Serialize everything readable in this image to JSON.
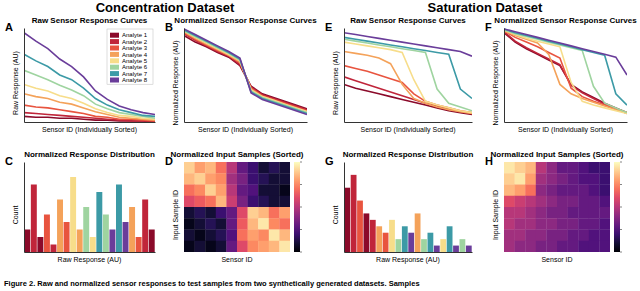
{
  "figure": {
    "headings": [
      "Concentration Dataset",
      "Saturation Dataset"
    ],
    "caption": "Figure 2. Raw and normalized sensor responses to test samples from two synthetically generated datasets. Samples"
  },
  "chart_data": [
    {
      "type": "line",
      "title": "Raw Sensor Response Curves",
      "annotations": [
        "A"
      ],
      "x_label": "Sensor ID (Individually Sorted)",
      "y_label": "Raw Response (AU)",
      "x": [
        0,
        1,
        2,
        3,
        4,
        5,
        6,
        7,
        8,
        9,
        10,
        11
      ],
      "xlim": [
        0,
        11
      ],
      "ylim": [
        0,
        100
      ],
      "tick_labels": false,
      "legend": "upper right",
      "series": [
        {
          "name": "Analyte 1",
          "color": "#8b0a2a",
          "values": [
            6,
            5,
            5,
            4,
            4,
            3,
            2,
            2,
            1,
            1,
            1,
            0
          ]
        },
        {
          "name": "Analyte 2",
          "color": "#c0253a",
          "values": [
            10,
            9,
            8,
            7,
            6,
            5,
            4,
            3,
            2,
            1,
            1,
            1
          ]
        },
        {
          "name": "Analyte 3",
          "color": "#e8543f",
          "values": [
            18,
            16,
            15,
            13,
            11,
            9,
            6,
            5,
            3,
            3,
            2,
            1
          ]
        },
        {
          "name": "Analyte 4",
          "color": "#f4a25a",
          "values": [
            30,
            27,
            25,
            21,
            19,
            15,
            11,
            8,
            5,
            4,
            3,
            2
          ]
        },
        {
          "name": "Analyte 5",
          "color": "#f7dd8a",
          "values": [
            40,
            36,
            33,
            28,
            25,
            20,
            14,
            10,
            7,
            6,
            4,
            3
          ]
        },
        {
          "name": "Analyte 6",
          "color": "#9fd4a0",
          "values": [
            55,
            50,
            45,
            39,
            34,
            28,
            19,
            14,
            10,
            8,
            6,
            4
          ]
        },
        {
          "name": "Analyte 7",
          "color": "#3c9aa6",
          "values": [
            72,
            65,
            59,
            50,
            45,
            36,
            25,
            18,
            13,
            10,
            7,
            6
          ]
        },
        {
          "name": "Analyte 8",
          "color": "#6a3d9a",
          "values": [
            95,
            86,
            78,
            67,
            59,
            48,
            33,
            24,
            17,
            13,
            10,
            8
          ]
        }
      ]
    },
    {
      "type": "line",
      "title": "Normalized Sensor Response Curves",
      "annotations": [
        "B"
      ],
      "x_label": "Sensor ID (Individually Sorted)",
      "y_label": "Normalized Response (AU)",
      "x": [
        0,
        1,
        2,
        3,
        4,
        5,
        6,
        7,
        8,
        9,
        10,
        11
      ],
      "xlim": [
        0,
        11
      ],
      "ylim": [
        0,
        1
      ],
      "tick_labels": false,
      "series": [
        {
          "color": "#8b0a2a",
          "values": [
            0.92,
            0.85,
            0.8,
            0.74,
            0.69,
            0.6,
            0.38,
            0.3,
            0.26,
            0.22,
            0.18,
            0.14
          ]
        },
        {
          "color": "#c0253a",
          "values": [
            0.94,
            0.87,
            0.81,
            0.75,
            0.7,
            0.61,
            0.37,
            0.29,
            0.25,
            0.21,
            0.17,
            0.13
          ]
        },
        {
          "color": "#e8543f",
          "values": [
            0.95,
            0.88,
            0.82,
            0.76,
            0.71,
            0.63,
            0.36,
            0.28,
            0.24,
            0.2,
            0.16,
            0.12
          ]
        },
        {
          "color": "#f4a25a",
          "values": [
            0.96,
            0.89,
            0.83,
            0.77,
            0.71,
            0.64,
            0.35,
            0.27,
            0.23,
            0.19,
            0.15,
            0.11
          ]
        },
        {
          "color": "#f7dd8a",
          "values": [
            0.97,
            0.9,
            0.84,
            0.78,
            0.72,
            0.65,
            0.34,
            0.27,
            0.23,
            0.19,
            0.15,
            0.11
          ]
        },
        {
          "color": "#9fd4a0",
          "values": [
            0.97,
            0.91,
            0.85,
            0.79,
            0.73,
            0.66,
            0.33,
            0.26,
            0.22,
            0.18,
            0.14,
            0.1
          ]
        },
        {
          "color": "#3c9aa6",
          "values": [
            0.98,
            0.92,
            0.86,
            0.8,
            0.74,
            0.67,
            0.32,
            0.25,
            0.21,
            0.17,
            0.13,
            0.09
          ]
        },
        {
          "color": "#6a3d9a",
          "values": [
            0.99,
            0.93,
            0.87,
            0.81,
            0.75,
            0.68,
            0.31,
            0.24,
            0.2,
            0.16,
            0.12,
            0.08
          ]
        }
      ]
    },
    {
      "type": "histogram",
      "title": "Normalized Response Distribution",
      "annotations": [
        "C"
      ],
      "x_label": "Raw Response (AU)",
      "y_label": "Count",
      "bins": [
        0,
        0.05,
        0.1,
        0.15,
        0.2,
        0.25,
        0.3,
        0.35,
        0.4,
        0.45,
        0.5,
        0.55,
        0.6,
        0.65,
        0.7,
        0.75,
        0.8,
        0.85,
        0.9,
        0.95,
        1
      ],
      "values": [
        3,
        9,
        2,
        5,
        1,
        7,
        4,
        10,
        3,
        6,
        2,
        8,
        5,
        3,
        9,
        4,
        6,
        2,
        7,
        3
      ],
      "colors": [
        "#8b0a2a",
        "#c0253a",
        "#8b0a2a",
        "#e8543f",
        "#c0253a",
        "#f4a25a",
        "#e8543f",
        "#f7dd8a",
        "#f4a25a",
        "#9fd4a0",
        "#f7dd8a",
        "#3c9aa6",
        "#9fd4a0",
        "#6a3d9a",
        "#3c9aa6",
        "#6a3d9a",
        "#f4a25a",
        "#e8543f",
        "#c0253a",
        "#8b0a2a"
      ],
      "xlim": [
        0,
        1
      ],
      "ylim": [
        0,
        12
      ],
      "tick_labels": false
    },
    {
      "type": "heatmap",
      "title": "Normalized Input Samples (Sorted)",
      "annotations": [
        "D"
      ],
      "x_label": "Sensor ID",
      "y_label": "Input Sample ID",
      "color": "magma",
      "tick_labels": false,
      "colorbar": {
        "range": [
          0,
          1
        ],
        "ticks": [
          0,
          0.25,
          0.5,
          0.75,
          1
        ]
      },
      "cells": [
        [
          0.9,
          0.8,
          0.85,
          0.7,
          0.5,
          0.3,
          0.2,
          0.1,
          0.15,
          0.1
        ],
        [
          0.85,
          0.9,
          0.8,
          0.75,
          0.45,
          0.35,
          0.2,
          0.15,
          0.1,
          0.1
        ],
        [
          0.7,
          0.75,
          0.9,
          0.8,
          0.5,
          0.3,
          0.25,
          0.1,
          0.1,
          0.05
        ],
        [
          0.6,
          0.65,
          0.7,
          0.85,
          0.55,
          0.35,
          0.2,
          0.15,
          0.1,
          0.1
        ],
        [
          0.1,
          0.15,
          0.1,
          0.2,
          0.3,
          0.6,
          0.9,
          0.85,
          0.7,
          0.8
        ],
        [
          0.05,
          0.1,
          0.15,
          0.1,
          0.3,
          0.65,
          0.85,
          0.95,
          0.75,
          0.7
        ],
        [
          0.1,
          0.05,
          0.1,
          0.15,
          0.25,
          0.7,
          0.8,
          0.75,
          0.95,
          0.85
        ],
        [
          0.05,
          0.1,
          0.05,
          0.1,
          0.3,
          0.6,
          0.75,
          0.8,
          0.85,
          0.95
        ]
      ]
    },
    {
      "type": "line",
      "title": "Raw Sensor Response Curves",
      "annotations": [
        "E"
      ],
      "x_label": "Sensor ID (Individually Sorted)",
      "y_label": "Raw Response (AU)",
      "x": [
        0,
        1,
        2,
        3,
        4,
        5,
        6,
        7,
        8,
        9,
        10,
        11
      ],
      "xlim": [
        0,
        11
      ],
      "ylim": [
        0,
        100
      ],
      "tick_labels": false,
      "series": [
        {
          "color": "#8b0a2a",
          "values": [
            40,
            36,
            33,
            30,
            27,
            24,
            21,
            18,
            15,
            12,
            10,
            8
          ]
        },
        {
          "color": "#c0253a",
          "values": [
            48,
            44,
            40,
            36,
            32,
            28,
            24,
            20,
            17,
            14,
            11,
            9
          ]
        },
        {
          "color": "#e8543f",
          "values": [
            60,
            57,
            54,
            50,
            46,
            42,
            30,
            22,
            18,
            15,
            12,
            10
          ]
        },
        {
          "color": "#f4a25a",
          "values": [
            75,
            73,
            71,
            68,
            62,
            40,
            25,
            20,
            16,
            13,
            11,
            9
          ]
        },
        {
          "color": "#f7dd8a",
          "values": [
            85,
            83,
            81,
            79,
            77,
            74,
            45,
            22,
            18,
            15,
            12,
            10
          ]
        },
        {
          "color": "#9fd4a0",
          "values": [
            88,
            86,
            84,
            82,
            80,
            78,
            76,
            74,
            35,
            20,
            16,
            12
          ]
        },
        {
          "color": "#3c9aa6",
          "values": [
            90,
            88,
            86,
            84,
            82,
            80,
            78,
            76,
            74,
            72,
            35,
            25
          ]
        },
        {
          "color": "#6a3d9a",
          "values": [
            95,
            93,
            91,
            89,
            87,
            85,
            83,
            81,
            79,
            77,
            75,
            70
          ]
        }
      ]
    },
    {
      "type": "line",
      "title": "Normalized Sensor Response Curves",
      "annotations": [
        "F"
      ],
      "x_label": "Sensor ID (Individually Sorted)",
      "y_label": "Normalized Response (AU)",
      "x": [
        0,
        1,
        2,
        3,
        4,
        5,
        6,
        7,
        8,
        9,
        10,
        11
      ],
      "xlim": [
        0,
        11
      ],
      "ylim": [
        0,
        1
      ],
      "tick_labels": false,
      "series": [
        {
          "color": "#8b0a2a",
          "values": [
            0.95,
            0.85,
            0.78,
            0.72,
            0.66,
            0.6,
            0.4,
            0.32,
            0.26,
            0.2,
            0.15,
            0.1
          ]
        },
        {
          "color": "#c0253a",
          "values": [
            0.96,
            0.86,
            0.79,
            0.73,
            0.67,
            0.61,
            0.39,
            0.31,
            0.25,
            0.19,
            0.14,
            0.09
          ]
        },
        {
          "color": "#e8543f",
          "values": [
            0.97,
            0.9,
            0.85,
            0.8,
            0.74,
            0.68,
            0.36,
            0.27,
            0.22,
            0.18,
            0.14,
            0.1
          ]
        },
        {
          "color": "#f4a25a",
          "values": [
            0.97,
            0.92,
            0.88,
            0.84,
            0.72,
            0.4,
            0.3,
            0.25,
            0.21,
            0.17,
            0.13,
            0.1
          ]
        },
        {
          "color": "#f7dd8a",
          "values": [
            0.98,
            0.93,
            0.89,
            0.86,
            0.83,
            0.8,
            0.42,
            0.22,
            0.18,
            0.15,
            0.12,
            0.09
          ]
        },
        {
          "color": "#9fd4a0",
          "values": [
            0.98,
            0.94,
            0.91,
            0.88,
            0.85,
            0.82,
            0.79,
            0.76,
            0.38,
            0.2,
            0.15,
            0.1
          ]
        },
        {
          "color": "#3c9aa6",
          "values": [
            0.99,
            0.95,
            0.92,
            0.89,
            0.86,
            0.83,
            0.8,
            0.77,
            0.74,
            0.71,
            0.3,
            0.18
          ]
        },
        {
          "color": "#6a3d9a",
          "values": [
            0.99,
            0.96,
            0.93,
            0.9,
            0.87,
            0.84,
            0.81,
            0.78,
            0.75,
            0.72,
            0.69,
            0.5
          ]
        }
      ]
    },
    {
      "type": "histogram",
      "title": "Normalized Response Distribution",
      "annotations": [
        "G"
      ],
      "x_label": "Raw Response (AU)",
      "y_label": "Count",
      "bins": [
        0,
        0.05,
        0.1,
        0.15,
        0.2,
        0.25,
        0.3,
        0.35,
        0.4,
        0.45,
        0.5,
        0.55,
        0.6,
        0.65,
        0.7,
        0.75,
        0.8,
        0.85,
        0.9,
        0.95,
        1
      ],
      "values": [
        10,
        12,
        8,
        6,
        5,
        4,
        3,
        5,
        2,
        4,
        3,
        6,
        2,
        3,
        1,
        2,
        4,
        1,
        2,
        1
      ],
      "colors": [
        "#8b0a2a",
        "#c0253a",
        "#e8543f",
        "#8b0a2a",
        "#c0253a",
        "#f4a25a",
        "#e8543f",
        "#f7dd8a",
        "#9fd4a0",
        "#3c9aa6",
        "#6a3d9a",
        "#f4a25a",
        "#9fd4a0",
        "#3c9aa6",
        "#6a3d9a",
        "#f7dd8a",
        "#3c9aa6",
        "#6a3d9a",
        "#9fd4a0",
        "#6a3d9a"
      ],
      "xlim": [
        0,
        1
      ],
      "ylim": [
        0,
        14
      ],
      "tick_labels": false
    },
    {
      "type": "heatmap",
      "title": "Normalized Input Samples (Sorted)",
      "annotations": [
        "H"
      ],
      "x_label": "Sensor ID",
      "y_label": "Input Sample ID",
      "color": "magma",
      "tick_labels": false,
      "colorbar": {
        "range": [
          0,
          1
        ],
        "ticks": [
          0,
          0.25,
          0.5,
          0.75,
          1
        ]
      },
      "cells": [
        [
          0.95,
          0.9,
          0.85,
          0.5,
          0.4,
          0.3,
          0.3,
          0.25,
          0.2,
          0.2
        ],
        [
          0.9,
          0.95,
          0.8,
          0.45,
          0.4,
          0.35,
          0.3,
          0.25,
          0.25,
          0.2
        ],
        [
          0.85,
          0.8,
          0.7,
          0.4,
          0.35,
          0.3,
          0.3,
          0.3,
          0.25,
          0.2
        ],
        [
          0.6,
          0.55,
          0.5,
          0.45,
          0.4,
          0.35,
          0.35,
          0.3,
          0.3,
          0.25
        ],
        [
          0.5,
          0.5,
          0.45,
          0.4,
          0.35,
          0.35,
          0.3,
          0.3,
          0.3,
          0.3
        ],
        [
          0.5,
          0.45,
          0.45,
          0.4,
          0.4,
          0.35,
          0.35,
          0.3,
          0.3,
          0.25
        ],
        [
          0.45,
          0.45,
          0.4,
          0.4,
          0.35,
          0.35,
          0.3,
          0.3,
          0.25,
          0.25
        ],
        [
          0.45,
          0.4,
          0.4,
          0.35,
          0.35,
          0.3,
          0.3,
          0.25,
          0.25,
          0.25
        ]
      ]
    }
  ]
}
